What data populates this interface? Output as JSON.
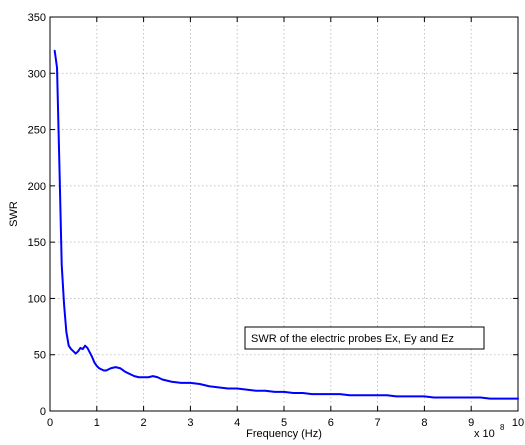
{
  "chart_data": {
    "type": "line",
    "title": "",
    "xlabel": "Frequency (Hz)",
    "ylabel": "SWR",
    "x_multiplier_label": "x 10",
    "x_multiplier_exponent": "8",
    "xlim": [
      0,
      10
    ],
    "ylim": [
      0,
      350
    ],
    "xticks": [
      0,
      1,
      2,
      3,
      4,
      5,
      6,
      7,
      8,
      9,
      10
    ],
    "yticks": [
      0,
      50,
      100,
      150,
      200,
      250,
      300,
      350
    ],
    "grid": true,
    "annotation": "SWR of the electric probes Ex, Ey and Ez",
    "annotation_placement": "center-right",
    "line_color": "#0000ff",
    "series": [
      {
        "x": [
          0.1,
          0.15,
          0.2,
          0.25,
          0.3,
          0.35,
          0.4,
          0.45,
          0.5,
          0.55,
          0.6,
          0.65,
          0.7,
          0.75,
          0.8,
          0.85,
          0.9,
          0.95,
          1.0,
          1.05,
          1.1,
          1.15,
          1.2,
          1.25,
          1.3,
          1.4,
          1.5,
          1.6,
          1.7,
          1.8,
          1.9,
          2.0,
          2.1,
          2.2,
          2.3,
          2.4,
          2.5,
          2.6,
          2.8,
          3.0,
          3.2,
          3.4,
          3.6,
          3.8,
          4.0,
          4.2,
          4.4,
          4.6,
          4.8,
          5.0,
          5.2,
          5.4,
          5.6,
          5.8,
          6.0,
          6.2,
          6.4,
          6.6,
          6.8,
          7.0,
          7.2,
          7.4,
          7.6,
          7.8,
          8.0,
          8.2,
          8.4,
          8.6,
          8.8,
          9.0,
          9.2,
          9.4,
          9.6,
          9.8,
          10.0
        ],
        "y": [
          320,
          305,
          220,
          130,
          95,
          70,
          58,
          55,
          53,
          51,
          53,
          56,
          55,
          58,
          56,
          52,
          48,
          43,
          40,
          38,
          37,
          36,
          36,
          37,
          38,
          39,
          38,
          35,
          33,
          31,
          30,
          30,
          30,
          31,
          30,
          28,
          27,
          26,
          25,
          25,
          24,
          22,
          21,
          20,
          20,
          19,
          18,
          18,
          17,
          17,
          16,
          16,
          15,
          15,
          15,
          15,
          14,
          14,
          14,
          14,
          14,
          13,
          13,
          13,
          13,
          12,
          12,
          12,
          12,
          12,
          12,
          11,
          11,
          11,
          11
        ]
      }
    ]
  }
}
